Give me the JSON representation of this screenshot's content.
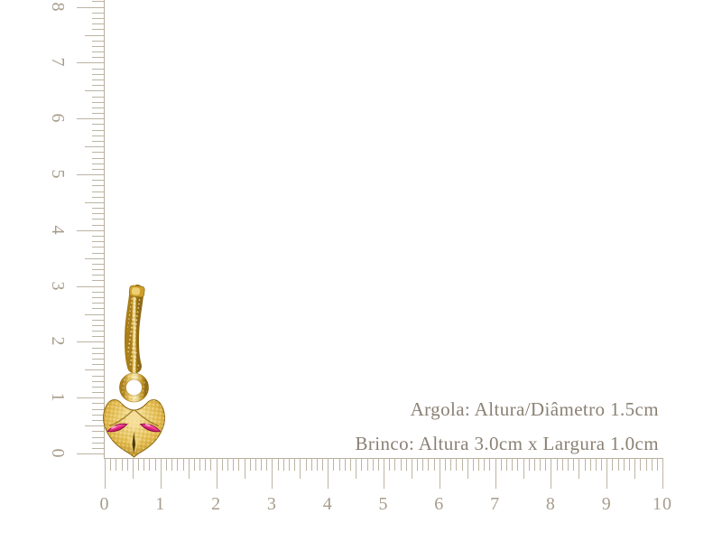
{
  "diagram": {
    "background": "#ffffff",
    "annotations": {
      "hoop": "Argola: Altura/Diâmetro 1.5cm",
      "earring": "Brinco: Altura 3.0cm x Largura 1.0cm"
    },
    "text_color": "#8a8174"
  },
  "rulers": {
    "unit": "cm",
    "tick_color": "#bdb4a3",
    "label_color": "#a79d8c",
    "vertical": {
      "min": 0,
      "max": 8,
      "labels": [
        "0",
        "1",
        "2",
        "3",
        "4",
        "5",
        "6",
        "7",
        "8"
      ]
    },
    "horizontal": {
      "min": 0,
      "max": 10,
      "labels": [
        "0",
        "1",
        "2",
        "3",
        "4",
        "5",
        "6",
        "7",
        "8",
        "9",
        "10"
      ]
    }
  },
  "product": {
    "description": "gold fox pendant huggie earring with pink marquise crystal eyes",
    "measurements": {
      "hoop_height_diameter_cm": 1.5,
      "earring_height_cm": 3.0,
      "earring_width_cm": 1.0
    },
    "colors": {
      "gold": "#d9ae3e",
      "gold_light": "#f9eebd",
      "gold_dark": "#8f6a14",
      "ruby_pink": "#ea2c83"
    }
  }
}
